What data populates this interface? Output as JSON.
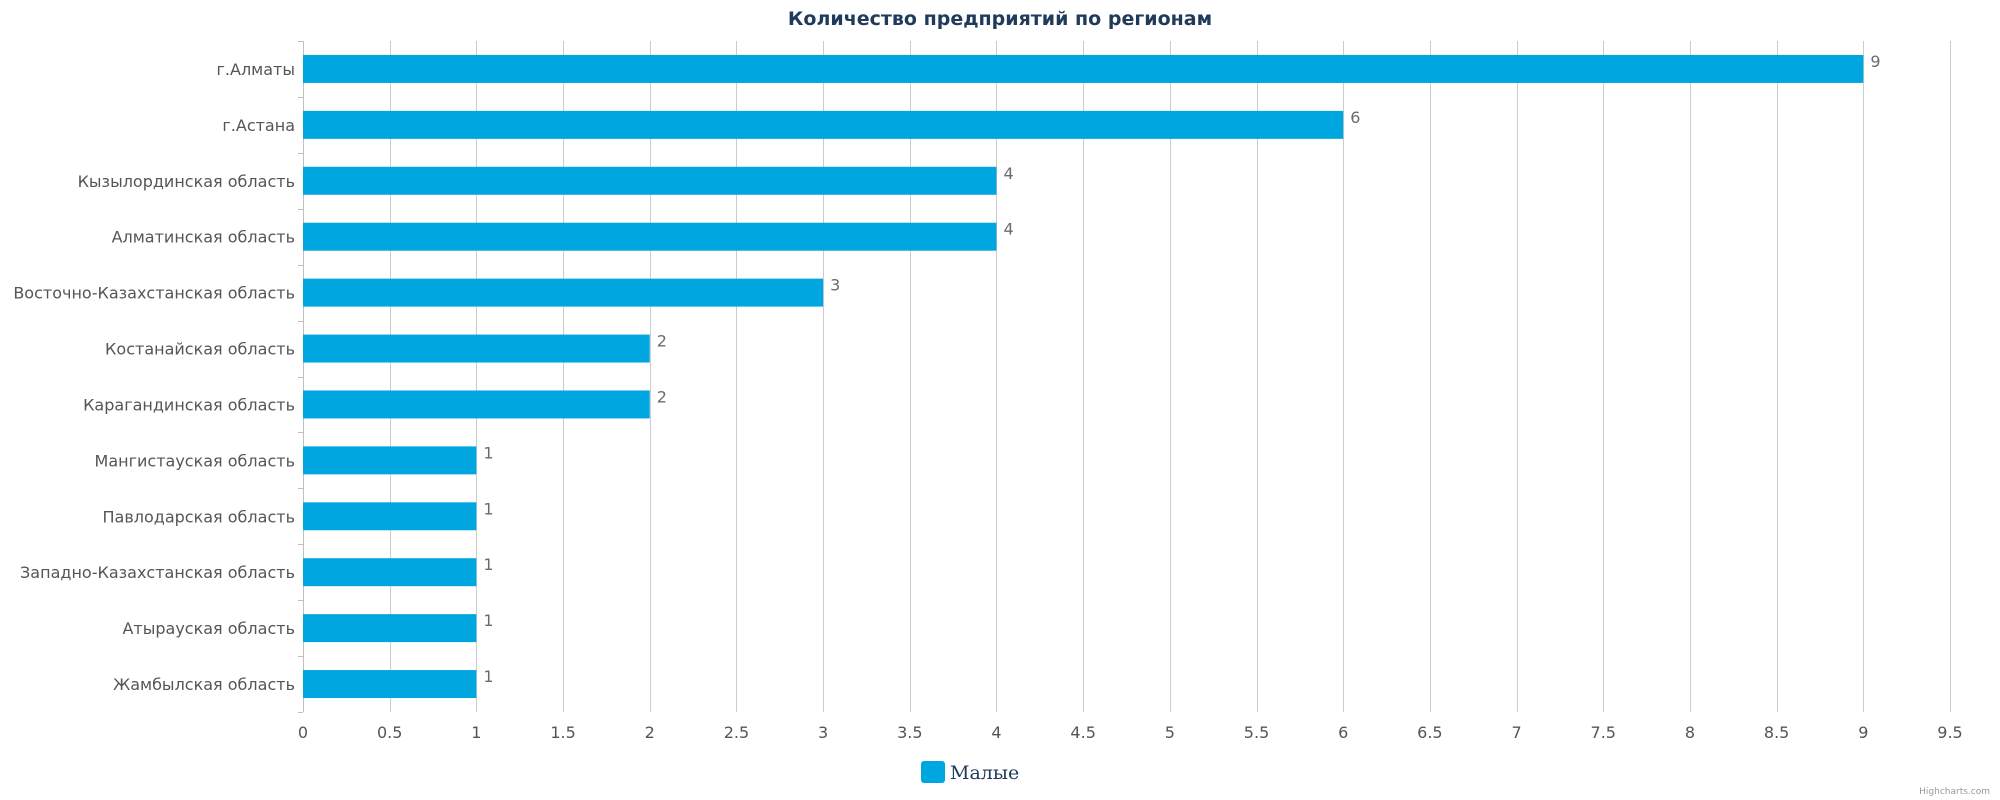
{
  "chart_data": {
    "type": "bar",
    "orientation": "horizontal",
    "title": "Количество предприятий по регионам",
    "categories": [
      "г.Алматы",
      "г.Астана",
      "Кызылординская область",
      "Алматинская область",
      "Восточно-Казахстанская область",
      "Костанайская область",
      "Карагандинская область",
      "Мангистауская область",
      "Павлодарская область",
      "Западно-Казахстанская область",
      "Атырауская область",
      "Жамбылская область"
    ],
    "series": [
      {
        "name": "Малые",
        "color": "#00a6e0",
        "values": [
          9,
          6,
          4,
          4,
          3,
          2,
          2,
          1,
          1,
          1,
          1,
          1
        ]
      }
    ],
    "xlim": [
      0,
      9.5
    ],
    "xticks": [
      0,
      0.5,
      1,
      1.5,
      2,
      2.5,
      3,
      3.5,
      4,
      4.5,
      5,
      5.5,
      6,
      6.5,
      7,
      7.5,
      8,
      8.5,
      9,
      9.5
    ],
    "grid": true,
    "legend_position": "bottom-center",
    "data_labels": true
  },
  "credits": "Highcharts.com"
}
